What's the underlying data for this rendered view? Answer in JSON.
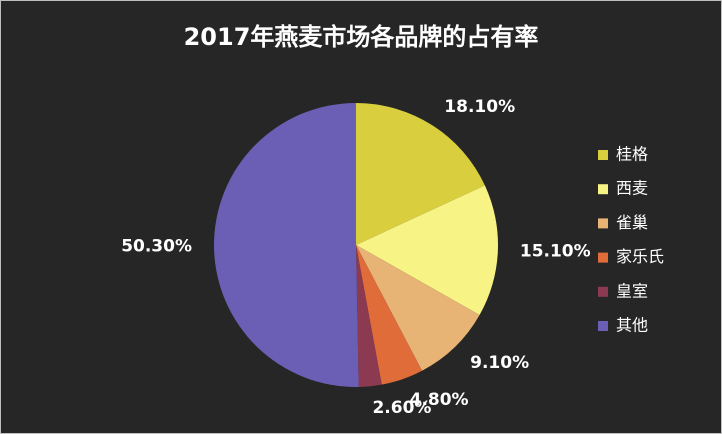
{
  "chart_data": {
    "type": "pie",
    "title": "2017年燕麦市场各品牌的占有率",
    "series": [
      {
        "name": "桂格",
        "color": "#d9cf3e",
        "values": [
          18.1
        ],
        "value_labels": [
          "18.10%"
        ]
      },
      {
        "name": "西麦",
        "color": "#f7f385",
        "values": [
          15.1
        ],
        "value_labels": [
          "15.10%"
        ]
      },
      {
        "name": "雀巢",
        "color": "#e8b475",
        "values": [
          9.1
        ],
        "value_labels": [
          "9.10%"
        ]
      },
      {
        "name": "家乐氏",
        "color": "#e06c3a",
        "values": [
          4.8
        ],
        "value_labels": [
          "4.80%"
        ]
      },
      {
        "name": "皇室",
        "color": "#8b3a52",
        "values": [
          2.6
        ],
        "value_labels": [
          "2.60%"
        ]
      },
      {
        "name": "其他",
        "color": "#6a5fb5",
        "values": [
          50.3
        ],
        "value_labels": [
          "50.30%"
        ]
      }
    ],
    "legend": "right"
  }
}
